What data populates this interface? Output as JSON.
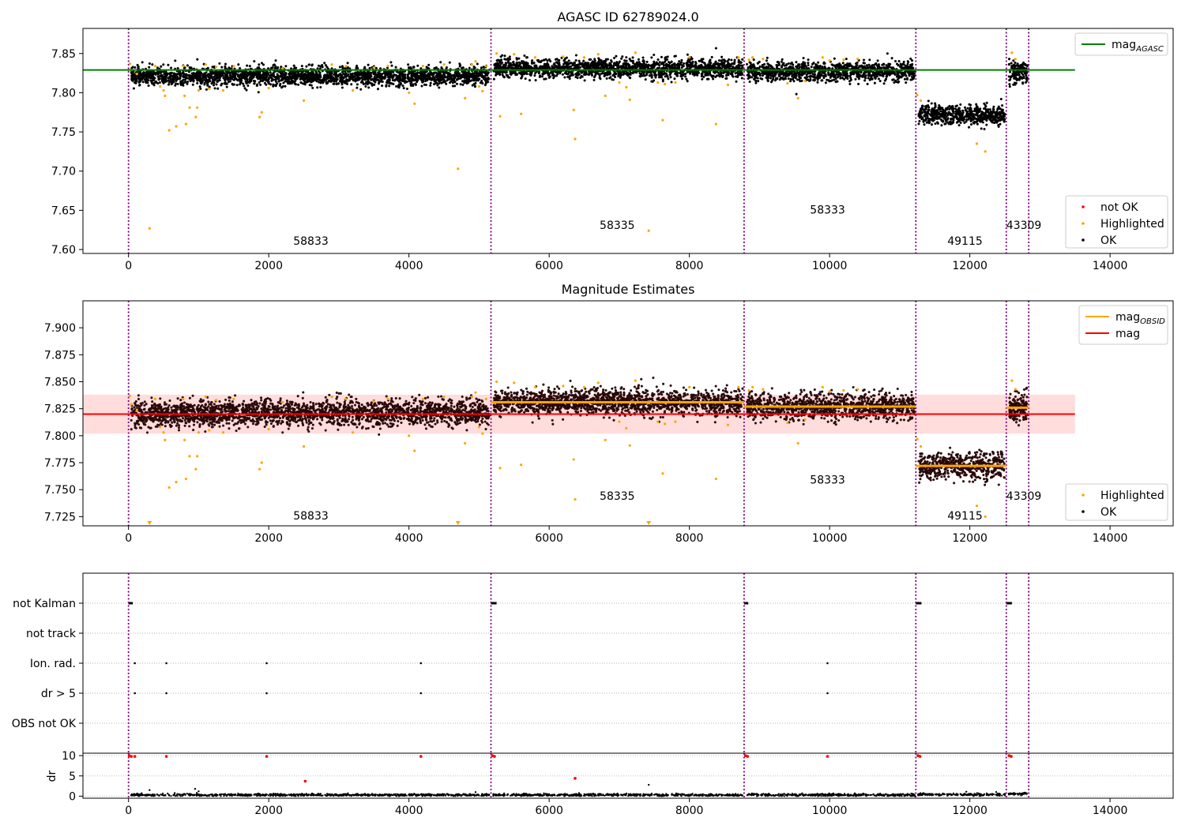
{
  "chart_data": [
    {
      "type": "scatter",
      "title": "AGASC ID 62789024.0",
      "xlim": [
        -650,
        14900
      ],
      "ylim": [
        7.595,
        7.882
      ],
      "x_ticks": [
        0,
        2000,
        4000,
        6000,
        8000,
        10000,
        12000,
        14000
      ],
      "x_tick_labels": [
        "0",
        "2000",
        "4000",
        "6000",
        "8000",
        "10000",
        "12000",
        "14000"
      ],
      "y_ticks": [
        7.6,
        7.65,
        7.7,
        7.75,
        7.8,
        7.85
      ],
      "y_tick_labels": [
        "7.60",
        "7.65",
        "7.70",
        "7.75",
        "7.80",
        "7.85"
      ],
      "reference_line": {
        "name": "mag_AGASC",
        "value": 7.829,
        "x_range": [
          -650,
          13500
        ],
        "color": "#008000"
      },
      "observation_boundaries": [
        0,
        5170,
        8780,
        11230,
        12520,
        12840
      ],
      "segments": [
        {
          "start": 0,
          "end": 5170,
          "mean": 7.821,
          "spread": 0.006
        },
        {
          "start": 5170,
          "end": 8780,
          "mean": 7.831,
          "spread": 0.006
        },
        {
          "start": 8780,
          "end": 11230,
          "mean": 7.827,
          "spread": 0.006
        },
        {
          "start": 11230,
          "end": 12520,
          "mean": 7.772,
          "spread": 0.006
        },
        {
          "start": 12520,
          "end": 12840,
          "mean": 7.826,
          "spread": 0.007
        }
      ],
      "highlighted_points": [
        [
          20,
          7.837
        ],
        [
          40,
          7.829
        ],
        [
          120,
          7.824
        ],
        [
          300,
          7.627
        ],
        [
          380,
          7.834
        ],
        [
          450,
          7.808
        ],
        [
          500,
          7.803
        ],
        [
          520,
          7.796
        ],
        [
          580,
          7.752
        ],
        [
          680,
          7.757
        ],
        [
          780,
          7.834
        ],
        [
          800,
          7.796
        ],
        [
          820,
          7.76
        ],
        [
          870,
          7.781
        ],
        [
          960,
          7.769
        ],
        [
          980,
          7.781
        ],
        [
          1000,
          7.803
        ],
        [
          1100,
          7.836
        ],
        [
          1150,
          7.805
        ],
        [
          1250,
          7.833
        ],
        [
          1350,
          7.803
        ],
        [
          1500,
          7.834
        ],
        [
          1870,
          7.769
        ],
        [
          1900,
          7.775
        ],
        [
          2000,
          7.806
        ],
        [
          2200,
          7.831
        ],
        [
          2500,
          7.79
        ],
        [
          2900,
          7.836
        ],
        [
          3100,
          7.834
        ],
        [
          3200,
          7.803
        ],
        [
          3500,
          7.832
        ],
        [
          3700,
          7.834
        ],
        [
          4000,
          7.8
        ],
        [
          4080,
          7.786
        ],
        [
          4200,
          7.834
        ],
        [
          4500,
          7.836
        ],
        [
          4700,
          7.703
        ],
        [
          4800,
          7.793
        ],
        [
          4900,
          7.836
        ],
        [
          4950,
          7.84
        ],
        [
          5000,
          7.808
        ],
        [
          5050,
          7.802
        ],
        [
          5100,
          7.834
        ],
        [
          5250,
          7.85
        ],
        [
          5300,
          7.77
        ],
        [
          5500,
          7.849
        ],
        [
          5600,
          7.773
        ],
        [
          5800,
          7.845
        ],
        [
          6200,
          7.846
        ],
        [
          6350,
          7.778
        ],
        [
          6370,
          7.741
        ],
        [
          6500,
          7.845
        ],
        [
          6700,
          7.849
        ],
        [
          6800,
          7.796
        ],
        [
          7000,
          7.813
        ],
        [
          7100,
          7.807
        ],
        [
          7150,
          7.791
        ],
        [
          7230,
          7.851
        ],
        [
          7420,
          7.624
        ],
        [
          7550,
          7.813
        ],
        [
          7620,
          7.765
        ],
        [
          7650,
          7.811
        ],
        [
          7800,
          7.813
        ],
        [
          8000,
          7.845
        ],
        [
          8380,
          7.76
        ],
        [
          8550,
          7.81
        ],
        [
          8700,
          7.845
        ],
        [
          8850,
          7.842
        ],
        [
          8900,
          7.845
        ],
        [
          9050,
          7.843
        ],
        [
          9400,
          7.812
        ],
        [
          9550,
          7.793
        ],
        [
          9650,
          7.815
        ],
        [
          9900,
          7.845
        ],
        [
          10000,
          7.841
        ],
        [
          10200,
          7.842
        ],
        [
          10400,
          7.843
        ],
        [
          11250,
          7.797
        ],
        [
          11300,
          7.79
        ],
        [
          12100,
          7.735
        ],
        [
          12220,
          7.725
        ],
        [
          12600,
          7.851
        ],
        [
          12650,
          7.843
        ]
      ],
      "segment_labels": [
        {
          "text": "58833",
          "x": 2350,
          "y": 7.606
        },
        {
          "text": "58335",
          "x": 6720,
          "y": 7.626
        },
        {
          "text": "58333",
          "x": 9720,
          "y": 7.646
        },
        {
          "text": "49115",
          "x": 11680,
          "y": 7.606
        },
        {
          "text": "43309",
          "x": 12520,
          "y": 7.626
        }
      ],
      "legend_top": [
        {
          "label": "mag",
          "sub": "AGASC",
          "color": "#008000",
          "kind": "line"
        }
      ],
      "legend_bottom": [
        {
          "label": "not OK",
          "color": "#ff0000",
          "kind": "point"
        },
        {
          "label": "Highlighted",
          "color": "#ffa500",
          "kind": "point"
        },
        {
          "label": "OK",
          "color": "#000000",
          "kind": "point"
        }
      ],
      "colors": {
        "ok": "#000000",
        "highlighted": "#ffa500",
        "not_ok": "#ff0000",
        "boundary": "#800080"
      }
    },
    {
      "type": "scatter",
      "title": "Magnitude Estimates",
      "xlim": [
        -650,
        14900
      ],
      "ylim": [
        7.7165,
        7.925
      ],
      "x_ticks": [
        0,
        2000,
        4000,
        6000,
        8000,
        10000,
        12000,
        14000
      ],
      "x_tick_labels": [
        "0",
        "2000",
        "4000",
        "6000",
        "8000",
        "10000",
        "12000",
        "14000"
      ],
      "y_ticks": [
        7.725,
        7.75,
        7.775,
        7.8,
        7.825,
        7.85,
        7.875,
        7.9
      ],
      "y_tick_labels": [
        "7.725",
        "7.750",
        "7.775",
        "7.800",
        "7.825",
        "7.850",
        "7.875",
        "7.900"
      ],
      "reference_line": {
        "name": "mag",
        "value": 7.82,
        "x_range": [
          -650,
          13500
        ],
        "color": "#ff0000"
      },
      "band": {
        "low": 7.802,
        "high": 7.838,
        "x_range": [
          -650,
          13500
        ],
        "color": "#ffdddd"
      },
      "obsid_lines": [
        {
          "start": 5170,
          "end": 8780,
          "value": 7.831
        },
        {
          "start": 8780,
          "end": 11230,
          "value": 7.827
        },
        {
          "start": 11230,
          "end": 12520,
          "value": 7.772
        },
        {
          "start": 12520,
          "end": 12840,
          "value": 7.826
        }
      ],
      "observation_boundaries": [
        0,
        5170,
        8780,
        11230,
        12520,
        12840
      ],
      "out_of_range_markers": [
        300,
        4700,
        7420
      ],
      "segment_labels": [
        {
          "text": "58833",
          "x": 2350,
          "y": 7.7225
        },
        {
          "text": "58335",
          "x": 6720,
          "y": 7.7405
        },
        {
          "text": "58333",
          "x": 9720,
          "y": 7.7555
        },
        {
          "text": "49115",
          "x": 11680,
          "y": 7.7225
        },
        {
          "text": "43309",
          "x": 12520,
          "y": 7.7405
        }
      ],
      "legend_top": [
        {
          "label": "mag",
          "sub": "OBSID",
          "color": "#ffa500",
          "kind": "line"
        },
        {
          "label": "mag",
          "sub": "",
          "color": "#ff0000",
          "kind": "line"
        }
      ],
      "legend_bottom": [
        {
          "label": "Highlighted",
          "color": "#ffa500",
          "kind": "point"
        },
        {
          "label": "OK",
          "color": "#000000",
          "kind": "point"
        }
      ],
      "colors": {
        "ok": "#000000",
        "highlighted": "#ffa500",
        "obsid_line": "#ffa500",
        "mag_line": "#ff0000"
      }
    },
    {
      "type": "scatter",
      "title": "",
      "xlim": [
        -650,
        14900
      ],
      "categories": [
        "not Kalman",
        "not track",
        "Ion. rad.",
        "dr > 5",
        "OBS not OK"
      ],
      "flag_points": {
        "not Kalman": [
          [
            0,
            60
          ],
          [
            5170,
            80
          ],
          [
            8780,
            60
          ],
          [
            11230,
            80
          ],
          [
            12520,
            80
          ]
        ],
        "not track": [],
        "Ion. rad.": [
          [
            90,
            0
          ],
          [
            540,
            0
          ],
          [
            1970,
            0
          ],
          [
            4170,
            0
          ],
          [
            9970,
            0
          ]
        ],
        "dr > 5": [
          [
            90,
            0
          ],
          [
            540,
            0
          ],
          [
            1970,
            0
          ],
          [
            4170,
            0
          ],
          [
            9970,
            0
          ]
        ],
        "OBS not OK": []
      },
      "dr_panel": {
        "ylabel": "dr",
        "ylim": [
          -0.5,
          10.6
        ],
        "y_ticks": [
          0,
          5,
          10
        ],
        "y_tick_labels": [
          "0",
          "5",
          "10"
        ],
        "x_ticks": [
          0,
          2000,
          4000,
          6000,
          8000,
          10000,
          12000,
          14000
        ],
        "x_tick_labels": [
          "0",
          "2000",
          "4000",
          "6000",
          "8000",
          "10000",
          "12000",
          "14000"
        ],
        "red_points": [
          [
            10,
            10
          ],
          [
            40,
            9.8
          ],
          [
            90,
            9.8
          ],
          [
            540,
            9.8
          ],
          [
            1970,
            9.8
          ],
          [
            2520,
            3.7
          ],
          [
            4170,
            9.8
          ],
          [
            5190,
            10
          ],
          [
            5220,
            9.8
          ],
          [
            6370,
            4.4
          ],
          [
            8800,
            10
          ],
          [
            8830,
            9.8
          ],
          [
            9970,
            9.8
          ],
          [
            11260,
            10
          ],
          [
            11290,
            9.8
          ],
          [
            12560,
            10
          ],
          [
            12590,
            9.8
          ]
        ],
        "black_points": [
          [
            300,
            1.5
          ],
          [
            950,
            1.8
          ],
          [
            1000,
            1.2
          ],
          [
            4950,
            1.0
          ],
          [
            7420,
            2.8
          ],
          [
            11950,
            1.1
          ]
        ],
        "segments": [
          {
            "start": 0,
            "end": 5170,
            "mean": 0.3
          },
          {
            "start": 5170,
            "end": 8780,
            "mean": 0.3
          },
          {
            "start": 8780,
            "end": 11230,
            "mean": 0.3
          },
          {
            "start": 11230,
            "end": 12520,
            "mean": 0.4
          },
          {
            "start": 12520,
            "end": 12840,
            "mean": 0.6
          }
        ]
      },
      "observation_boundaries": [
        0,
        5170,
        8780,
        11230,
        12520,
        12840
      ]
    }
  ]
}
